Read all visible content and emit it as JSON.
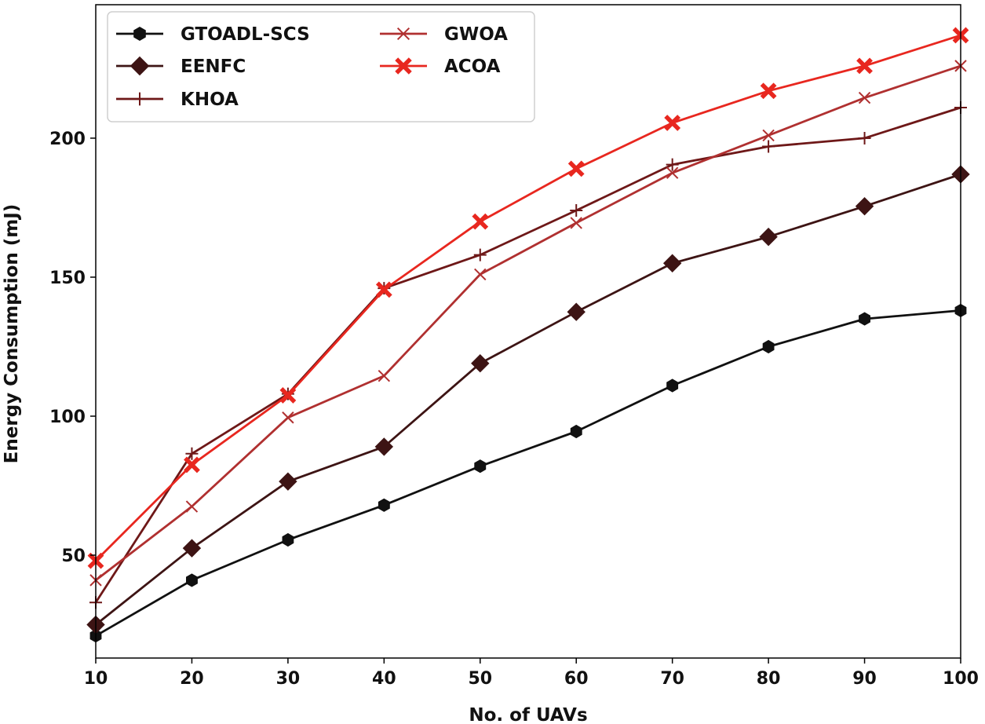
{
  "chart_data": {
    "type": "line",
    "title": "",
    "xlabel": "No. of UAVs",
    "ylabel": "Energy Consumption (mJ)",
    "x": [
      10,
      20,
      30,
      40,
      50,
      60,
      70,
      80,
      90,
      100
    ],
    "xlim": [
      10,
      100
    ],
    "ylim": [
      13,
      248
    ],
    "xticks": [
      10,
      20,
      30,
      40,
      50,
      60,
      70,
      80,
      90,
      100
    ],
    "yticks": [
      50,
      100,
      150,
      200
    ],
    "grid": false,
    "legend_position": "top-left",
    "series": [
      {
        "name": "GTOADL-SCS",
        "color": "#111111",
        "marker": "hexagon",
        "values": [
          21,
          41,
          55.5,
          68,
          82,
          94.5,
          111,
          125,
          135,
          138
        ]
      },
      {
        "name": "EENFC",
        "color": "#3d1414",
        "marker": "diamond",
        "values": [
          25,
          52.5,
          76.5,
          89,
          119,
          137.5,
          155,
          164.5,
          175.5,
          187
        ]
      },
      {
        "name": "KHOA",
        "color": "#6e1818",
        "marker": "plus",
        "values": [
          33,
          86.5,
          108,
          146,
          158,
          174,
          190.5,
          197,
          200,
          211
        ]
      },
      {
        "name": "GWOA",
        "color": "#b03030",
        "marker": "x",
        "values": [
          41,
          67.5,
          99.5,
          114.5,
          151,
          169.5,
          187.5,
          201,
          214.5,
          226
        ]
      },
      {
        "name": "ACOA",
        "color": "#e8271f",
        "marker": "x-bold",
        "values": [
          48,
          82.5,
          107.5,
          145.5,
          170,
          189,
          205.5,
          217,
          226,
          237
        ]
      }
    ]
  }
}
